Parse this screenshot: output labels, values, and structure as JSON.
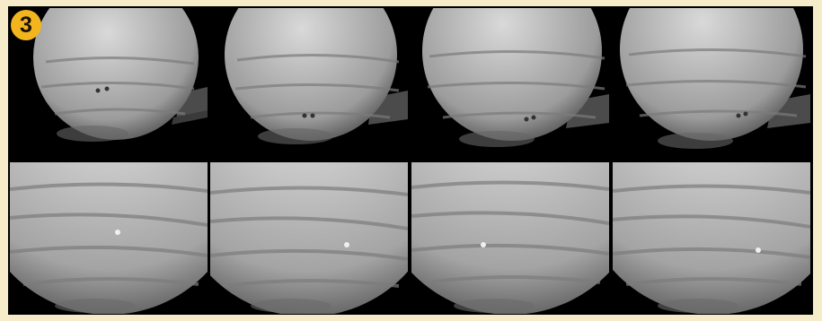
{
  "panel_label": "3",
  "frames": [
    {
      "row": 1,
      "col": 1,
      "content": "planet-with-rings-and-spots"
    },
    {
      "row": 1,
      "col": 2,
      "content": "planet-with-rings-and-spots"
    },
    {
      "row": 1,
      "col": 3,
      "content": "planet-with-rings-and-spots"
    },
    {
      "row": 1,
      "col": 4,
      "content": "planet-with-rings-and-spots"
    },
    {
      "row": 2,
      "col": 1,
      "content": "planet-cloud-bands-closeup"
    },
    {
      "row": 2,
      "col": 2,
      "content": "planet-cloud-bands-closeup"
    },
    {
      "row": 2,
      "col": 3,
      "content": "planet-cloud-bands-closeup"
    },
    {
      "row": 2,
      "col": 4,
      "content": "planet-cloud-bands-closeup"
    }
  ],
  "colors": {
    "background": "#f7ecc9",
    "badge": "#f3b51d",
    "frame": "#000000"
  }
}
